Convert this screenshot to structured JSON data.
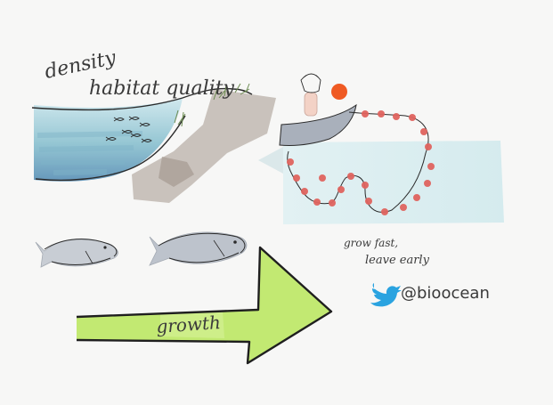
{
  "labels": {
    "density": "density",
    "habitat_quality": "habitat quality",
    "grow_fast_line1": "grow fast,",
    "grow_fast_line2": "leave early",
    "growth": "growth",
    "twitter_handle": "@bioocean"
  },
  "colors": {
    "background": "#f7f7f6",
    "water_blue": "#8fc3d1",
    "deep_blue": "#5f93b8",
    "shore_grey": "#b9b0a8",
    "net_float": "#e0645f",
    "buoy_orange": "#ef5a23",
    "arrow_green": "#bfe86a",
    "twitter_blue": "#2aa3e0",
    "fish_grey": "#a9b0bb",
    "ink": "#2b2b2b"
  },
  "icons": {
    "twitter": "twitter-bird-icon"
  }
}
